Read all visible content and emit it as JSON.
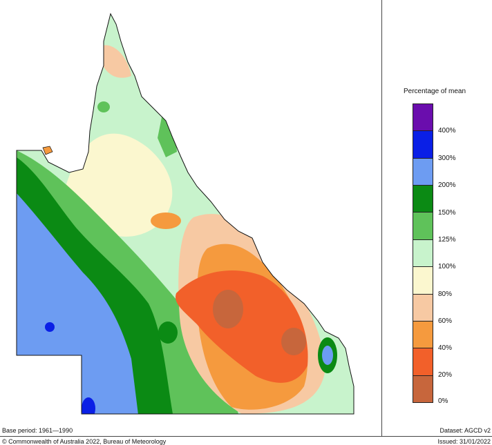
{
  "legend": {
    "title": "Percentage of mean",
    "classes": [
      {
        "color": "#6a0dad"
      },
      {
        "color": "#0a1fe6"
      },
      {
        "color": "#6d9cf2"
      },
      {
        "color": "#0b8a14"
      },
      {
        "color": "#5fc25a"
      },
      {
        "color": "#c8f3cc"
      },
      {
        "color": "#fbf7cf"
      },
      {
        "color": "#f7c9a3"
      },
      {
        "color": "#f59a3e"
      },
      {
        "color": "#f2602a"
      },
      {
        "color": "#c7663c"
      }
    ],
    "labels": [
      "400%",
      "300%",
      "200%",
      "150%",
      "125%",
      "100%",
      "80%",
      "60%",
      "40%",
      "20%",
      "0%"
    ]
  },
  "footer": {
    "base_period": "Base period: 1961—1990",
    "dataset": "Dataset: AGCD v2",
    "copyright": "© Commonwealth of Australia 2022, Bureau of Meteorology",
    "issued": "Issued: 31/01/2022"
  }
}
